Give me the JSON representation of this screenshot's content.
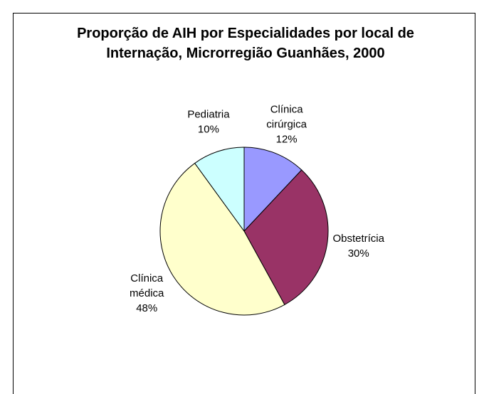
{
  "chart_data": {
    "type": "pie",
    "title": "Proporção de AIH por Especialidades por local de Internação, Microrregião Guanhães, 2000",
    "categories": [
      "Clínica cirúrgica",
      "Obstetrícia",
      "Clínica médica",
      "Pediatria"
    ],
    "values": [
      12,
      30,
      48,
      10
    ],
    "value_labels": [
      "12%",
      "30%",
      "48%",
      "10%"
    ],
    "colors": [
      "#9999ff",
      "#993366",
      "#ffffcc",
      "#ccffff"
    ]
  }
}
